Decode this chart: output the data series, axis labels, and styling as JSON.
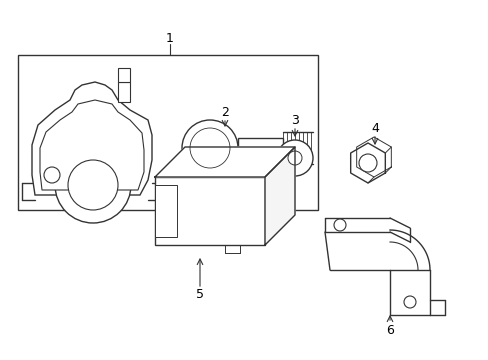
{
  "background_color": "#ffffff",
  "line_color": "#333333",
  "line_width": 1.0,
  "fig_width": 4.89,
  "fig_height": 3.6,
  "dpi": 100,
  "font_size": 9
}
